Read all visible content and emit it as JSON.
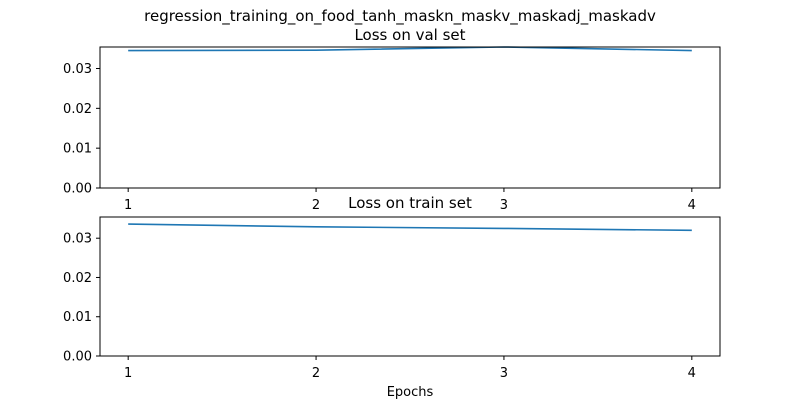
{
  "figure": {
    "suptitle": "regression_training_on_food_tanh_maskn_maskv_maskadj_maskadv"
  },
  "chart_data": [
    {
      "type": "line",
      "title": "Loss on val set",
      "xlabel": "",
      "ylabel": "",
      "x": [
        1,
        2,
        3,
        4
      ],
      "xticks": [
        "1",
        "2",
        "3",
        "4"
      ],
      "yticks": [
        "0.00",
        "0.01",
        "0.02",
        "0.03"
      ],
      "xlim": [
        0.85,
        4.15
      ],
      "ylim": [
        0.0,
        0.0354
      ],
      "series": [
        {
          "values": [
            0.0345,
            0.0346,
            0.0354,
            0.0345
          ],
          "color": "#1f77b4"
        }
      ],
      "grid": false,
      "legend": "none"
    },
    {
      "type": "line",
      "title": "Loss on train set",
      "xlabel": "Epochs",
      "ylabel": "",
      "x": [
        1,
        2,
        3,
        4
      ],
      "xticks": [
        "1",
        "2",
        "3",
        "4"
      ],
      "yticks": [
        "0.00",
        "0.01",
        "0.02",
        "0.03"
      ],
      "xlim": [
        0.85,
        4.15
      ],
      "ylim": [
        0.0,
        0.0354
      ],
      "series": [
        {
          "values": [
            0.0336,
            0.0329,
            0.0325,
            0.032
          ],
          "color": "#1f77b4"
        }
      ],
      "grid": false,
      "legend": "none"
    }
  ]
}
